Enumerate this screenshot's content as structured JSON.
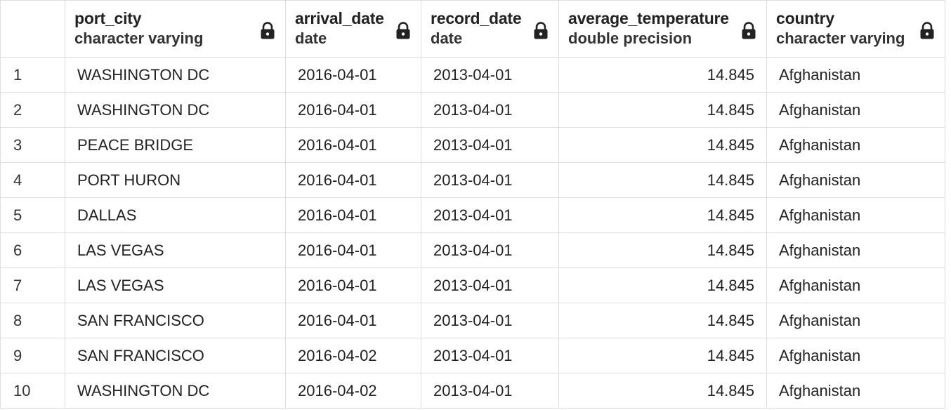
{
  "columns": [
    {
      "name": "port_city",
      "type": "character varying"
    },
    {
      "name": "arrival_date",
      "type": "date"
    },
    {
      "name": "record_date",
      "type": "date"
    },
    {
      "name": "average_temperature",
      "type": "double precision"
    },
    {
      "name": "country",
      "type": "character varying"
    }
  ],
  "rows": [
    {
      "n": "1",
      "port_city": "WASHINGTON DC",
      "arrival_date": "2016-04-01",
      "record_date": "2013-04-01",
      "average_temperature": "14.845",
      "country": "Afghanistan"
    },
    {
      "n": "2",
      "port_city": "WASHINGTON DC",
      "arrival_date": "2016-04-01",
      "record_date": "2013-04-01",
      "average_temperature": "14.845",
      "country": "Afghanistan"
    },
    {
      "n": "3",
      "port_city": "PEACE BRIDGE",
      "arrival_date": "2016-04-01",
      "record_date": "2013-04-01",
      "average_temperature": "14.845",
      "country": "Afghanistan"
    },
    {
      "n": "4",
      "port_city": "PORT HURON",
      "arrival_date": "2016-04-01",
      "record_date": "2013-04-01",
      "average_temperature": "14.845",
      "country": "Afghanistan"
    },
    {
      "n": "5",
      "port_city": "DALLAS",
      "arrival_date": "2016-04-01",
      "record_date": "2013-04-01",
      "average_temperature": "14.845",
      "country": "Afghanistan"
    },
    {
      "n": "6",
      "port_city": "LAS VEGAS",
      "arrival_date": "2016-04-01",
      "record_date": "2013-04-01",
      "average_temperature": "14.845",
      "country": "Afghanistan"
    },
    {
      "n": "7",
      "port_city": "LAS VEGAS",
      "arrival_date": "2016-04-01",
      "record_date": "2013-04-01",
      "average_temperature": "14.845",
      "country": "Afghanistan"
    },
    {
      "n": "8",
      "port_city": "SAN FRANCISCO",
      "arrival_date": "2016-04-01",
      "record_date": "2013-04-01",
      "average_temperature": "14.845",
      "country": "Afghanistan"
    },
    {
      "n": "9",
      "port_city": "SAN FRANCISCO",
      "arrival_date": "2016-04-02",
      "record_date": "2013-04-01",
      "average_temperature": "14.845",
      "country": "Afghanistan"
    },
    {
      "n": "10",
      "port_city": "WASHINGTON DC",
      "arrival_date": "2016-04-02",
      "record_date": "2013-04-01",
      "average_temperature": "14.845",
      "country": "Afghanistan"
    }
  ],
  "icons": {
    "column_lock": "lock-icon"
  },
  "colors": {
    "grid_line": "#dedede",
    "text": "#222222",
    "background": "#ffffff"
  }
}
